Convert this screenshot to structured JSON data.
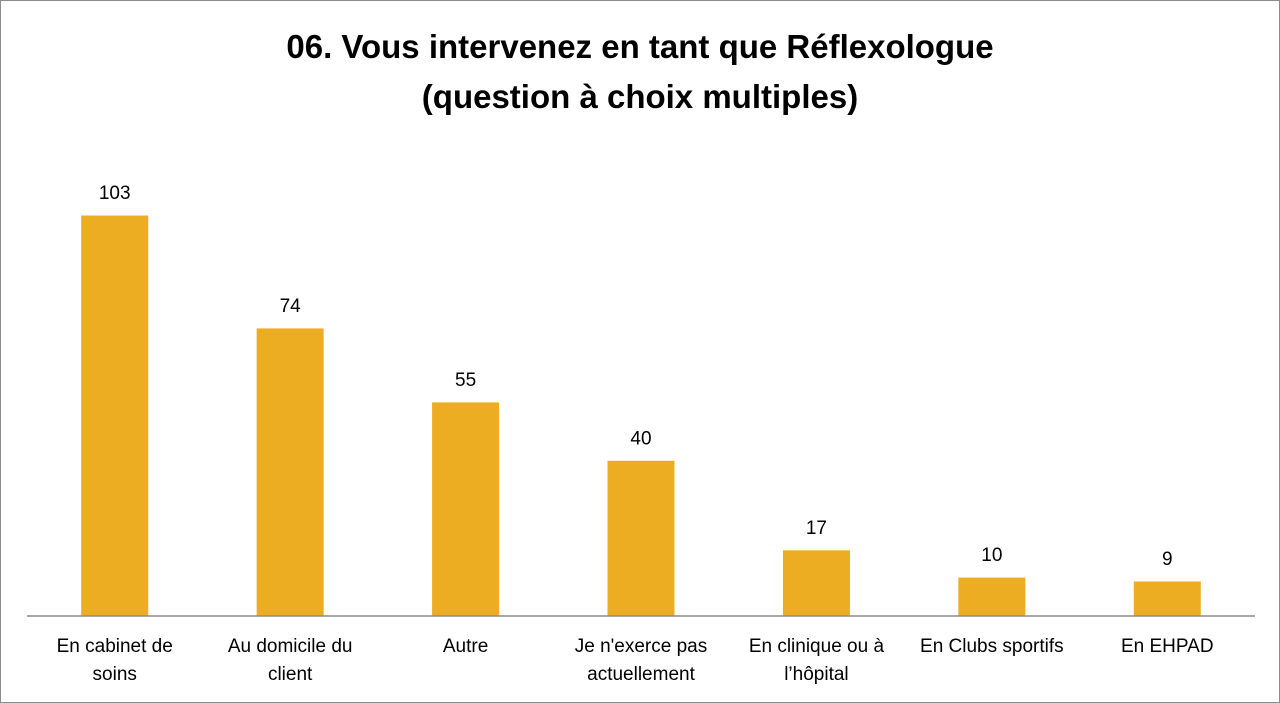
{
  "chart_data": {
    "type": "bar",
    "title_lines": [
      "06. Vous intervenez en tant que Réflexologue",
      "(question à choix multiples)"
    ],
    "categories": [
      [
        "En cabinet de",
        "soins"
      ],
      [
        "Au domicile du",
        "client"
      ],
      [
        "Autre"
      ],
      [
        "Je n'exerce pas",
        "actuellement"
      ],
      [
        "En clinique ou à",
        "l’hôpital"
      ],
      [
        "En Clubs sportifs"
      ],
      [
        "En EHPAD"
      ]
    ],
    "values": [
      103,
      74,
      55,
      40,
      17,
      10,
      9
    ],
    "ylim": [
      0,
      103
    ],
    "bar_color": "#EDAD22",
    "axis_color": "#8c8c8c",
    "grid": false,
    "legend": "none"
  }
}
